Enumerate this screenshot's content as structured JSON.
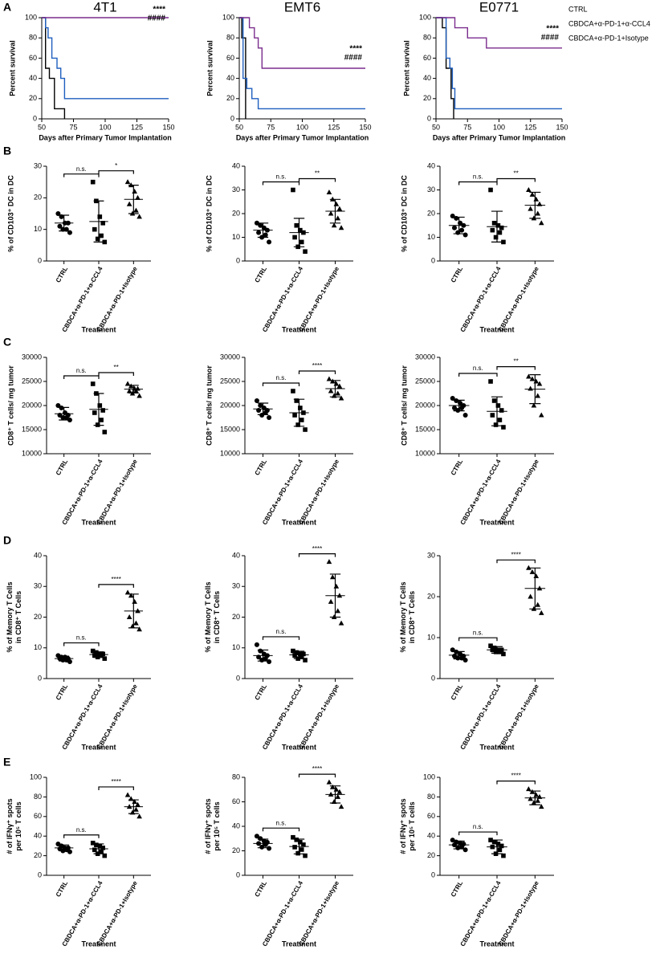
{
  "panels": [
    "A",
    "B",
    "C",
    "D",
    "E"
  ],
  "chart_data": [
    {
      "type": "line",
      "title": "4T1",
      "xlabel": "Days after Primary Tumor Implantation",
      "ylabel": [
        "Percent survival"
      ],
      "xlim": [
        50,
        150
      ],
      "xticks": [
        50,
        75,
        100,
        125,
        150
      ],
      "ylim": [
        0,
        100
      ],
      "yticks": [
        0,
        20,
        40,
        60,
        80,
        100
      ],
      "annotations": [
        "****",
        "####"
      ],
      "series": [
        {
          "color": "#000000",
          "x": [
            50,
            53,
            53,
            56,
            56,
            60,
            60,
            68,
            68
          ],
          "values": [
            100,
            100,
            50,
            50,
            40,
            40,
            10,
            10,
            0
          ]
        },
        {
          "color": "#1f5fbf",
          "x": [
            50,
            53,
            53,
            55,
            55,
            58,
            58,
            62,
            62,
            65,
            65,
            68,
            68,
            150
          ],
          "values": [
            100,
            100,
            90,
            90,
            80,
            80,
            60,
            60,
            50,
            50,
            40,
            40,
            20,
            20
          ]
        },
        {
          "color": "#7b2d8e",
          "x": [
            50,
            150
          ],
          "values": [
            100,
            100
          ]
        }
      ]
    },
    {
      "type": "line",
      "title": "EMT6",
      "xlabel": "Days after Primary Tumor Implantation",
      "ylabel": [
        "Percent survival"
      ],
      "xlim": [
        50,
        150
      ],
      "xticks": [
        50,
        75,
        100,
        125,
        150
      ],
      "ylim": [
        0,
        100
      ],
      "yticks": [
        0,
        20,
        40,
        60,
        80,
        100
      ],
      "annotations": [
        "****",
        "####"
      ],
      "series": [
        {
          "color": "#000000",
          "x": [
            50,
            52,
            52,
            55,
            55
          ],
          "values": [
            100,
            100,
            80,
            80,
            0
          ]
        },
        {
          "color": "#1f5fbf",
          "x": [
            50,
            53,
            53,
            56,
            56,
            60,
            60,
            65,
            65,
            150
          ],
          "values": [
            100,
            100,
            40,
            40,
            30,
            30,
            20,
            20,
            10,
            10
          ]
        },
        {
          "color": "#7b2d8e",
          "x": [
            50,
            58,
            58,
            62,
            62,
            65,
            65,
            68,
            68,
            150
          ],
          "values": [
            100,
            100,
            90,
            90,
            80,
            80,
            70,
            70,
            50,
            50
          ]
        }
      ]
    },
    {
      "type": "line",
      "title": "E0771",
      "xlabel": "Days after Primary Tumor Implantation",
      "ylabel": [
        "Percent survival"
      ],
      "xlim": [
        50,
        150
      ],
      "xticks": [
        50,
        75,
        100,
        125,
        150
      ],
      "ylim": [
        0,
        100
      ],
      "yticks": [
        0,
        20,
        40,
        60,
        80,
        100
      ],
      "annotations": [
        "****",
        "####"
      ],
      "legend": "right",
      "series": [
        {
          "name": "CTRL",
          "color": "#000000",
          "x": [
            50,
            55,
            55,
            58,
            58,
            62,
            62,
            64,
            64
          ],
          "values": [
            100,
            100,
            90,
            90,
            50,
            50,
            20,
            20,
            0
          ]
        },
        {
          "name": "CBDCA+α-PD-1+α-CCL4",
          "color": "#1f5fbf",
          "x": [
            50,
            58,
            58,
            61,
            61,
            63,
            63,
            65,
            65,
            150
          ],
          "values": [
            100,
            100,
            60,
            60,
            50,
            50,
            30,
            30,
            10,
            10
          ]
        },
        {
          "name": "CBDCA+α-PD-1+Isotype",
          "color": "#7b2d8e",
          "x": [
            50,
            65,
            65,
            75,
            75,
            90,
            90,
            150
          ],
          "values": [
            100,
            100,
            90,
            90,
            80,
            80,
            70,
            70
          ]
        }
      ]
    },
    {
      "type": "dot",
      "ylabel": [
        "% of CD103⁺ DC in DC"
      ],
      "xlabel": "Treatment",
      "categories": [
        "CTRL",
        "CBDCA+α-PD-1+α-CCL4",
        "CBDCA+α-PD-1+Isotype"
      ],
      "markers": [
        "circle",
        "square",
        "triangle"
      ],
      "ylim": [
        0,
        30
      ],
      "yticks": [
        0,
        10,
        20,
        30
      ],
      "values": [
        [
          15,
          14,
          12,
          12,
          11,
          10,
          10,
          9
        ],
        [
          25,
          19,
          14,
          12,
          10,
          8,
          7,
          6
        ],
        [
          25,
          24,
          22,
          20,
          18,
          16,
          15,
          14
        ]
      ],
      "means": [
        12,
        12.5,
        19.5
      ],
      "errors": [
        2.5,
        6.5,
        4.5
      ],
      "significance": [
        "n.s.",
        "*"
      ]
    },
    {
      "type": "dot",
      "ylabel": [
        "% of CD103⁺ DC in DC"
      ],
      "xlabel": "Treatment",
      "categories": [
        "CTRL",
        "CBDCA+α-PD-1+α-CCL4",
        "CBDCA+α-PD-1+Isotype"
      ],
      "markers": [
        "circle",
        "square",
        "triangle"
      ],
      "ylim": [
        0,
        40
      ],
      "yticks": [
        0,
        10,
        20,
        30,
        40
      ],
      "values": [
        [
          16,
          15,
          14,
          13,
          12,
          11,
          10,
          8
        ],
        [
          30,
          15,
          13,
          12,
          10,
          8,
          6,
          4
        ],
        [
          29,
          26,
          24,
          22,
          20,
          18,
          15,
          14
        ]
      ],
      "means": [
        13,
        12,
        21
      ],
      "errors": [
        3,
        6,
        5
      ],
      "significance": [
        "n.s.",
        "**"
      ]
    },
    {
      "type": "dot",
      "ylabel": [
        "% of CD103⁺ DC in DC"
      ],
      "xlabel": "Treatment",
      "categories": [
        "CTRL",
        "CBDCA+α-PD-1+α-CCL4",
        "CBDCA+α-PD-1+Isotype"
      ],
      "markers": [
        "circle",
        "square",
        "triangle"
      ],
      "ylim": [
        0,
        40
      ],
      "yticks": [
        0,
        10,
        20,
        30,
        40
      ],
      "values": [
        [
          19,
          18,
          16,
          15,
          14,
          13,
          12,
          11
        ],
        [
          30,
          16,
          15,
          14,
          13,
          12,
          10,
          8
        ],
        [
          30,
          28,
          26,
          24,
          22,
          20,
          18,
          16
        ]
      ],
      "means": [
        15,
        14.5,
        23.5
      ],
      "errors": [
        3.5,
        6.5,
        5.5
      ],
      "significance": [
        "n.s.",
        "**"
      ]
    },
    {
      "type": "dot",
      "ylabel": [
        "CD8⁺ T cells/ mg tumor"
      ],
      "xlabel": "Treatment",
      "categories": [
        "CTRL",
        "CBDCA+α-PD-1+α-CCL4",
        "CBDCA+α-PD-1+Isotype"
      ],
      "markers": [
        "circle",
        "square",
        "triangle"
      ],
      "ylim": [
        10000,
        30000
      ],
      "yticks": [
        10000,
        15000,
        20000,
        25000,
        30000
      ],
      "values": [
        [
          20000,
          19500,
          18500,
          18000,
          18000,
          17500,
          17500,
          17000
        ],
        [
          24500,
          22500,
          20000,
          19000,
          18500,
          17000,
          16000,
          14500
        ],
        [
          24500,
          24000,
          23500,
          23500,
          23000,
          23000,
          22500,
          22000
        ]
      ],
      "means": [
        18300,
        19200,
        23400
      ],
      "errors": [
        1300,
        3300,
        800
      ],
      "significance": [
        "n.s.",
        "**"
      ]
    },
    {
      "type": "dot",
      "ylabel": [
        "CD8⁺ T cells/ mg tumor"
      ],
      "xlabel": "Treatment",
      "categories": [
        "CTRL",
        "CBDCA+α-PD-1+α-CCL4",
        "CBDCA+α-PD-1+Isotype"
      ],
      "markers": [
        "circle",
        "square",
        "triangle"
      ],
      "ylim": [
        10000,
        30000
      ],
      "yticks": [
        10000,
        15000,
        20000,
        25000,
        30000
      ],
      "values": [
        [
          21000,
          20000,
          19500,
          19000,
          19000,
          18500,
          18000,
          17500
        ],
        [
          23000,
          21000,
          19500,
          18500,
          18000,
          17000,
          16000,
          15000
        ],
        [
          25500,
          25000,
          24500,
          24000,
          23000,
          22500,
          22000,
          21500
        ]
      ],
      "means": [
        19300,
        18500,
        23500
      ],
      "errors": [
        1200,
        2800,
        1700
      ],
      "significance": [
        "n.s.",
        "****"
      ]
    },
    {
      "type": "dot",
      "ylabel": [
        "CD8⁺ T cells/ mg tumor"
      ],
      "xlabel": "Treatment",
      "categories": [
        "CTRL",
        "CBDCA+α-PD-1+α-CCL4",
        "CBDCA+α-PD-1+Isotype"
      ],
      "markers": [
        "circle",
        "square",
        "triangle"
      ],
      "ylim": [
        10000,
        30000
      ],
      "yticks": [
        10000,
        15000,
        20000,
        25000,
        30000
      ],
      "values": [
        [
          21500,
          21000,
          20500,
          20000,
          19500,
          19500,
          19000,
          18000
        ],
        [
          25000,
          21000,
          20000,
          19000,
          18000,
          17000,
          16000,
          15500
        ],
        [
          26000,
          25500,
          25000,
          24500,
          23500,
          22000,
          20000,
          18000
        ]
      ],
      "means": [
        20000,
        18800,
        23400
      ],
      "errors": [
        1100,
        3000,
        3000
      ],
      "significance": [
        "n.s.",
        "**"
      ]
    },
    {
      "type": "dot",
      "ylabel": [
        "% of Memory T Cells",
        "in CD8⁺ T Cells"
      ],
      "xlabel": "Treatment",
      "categories": [
        "CTRL",
        "CBDCA+α-PD-1+α-CCL4",
        "CBDCA+α-PD-1+Isotype"
      ],
      "markers": [
        "circle",
        "square",
        "triangle"
      ],
      "ylim": [
        0,
        40
      ],
      "yticks": [
        0,
        10,
        20,
        30,
        40
      ],
      "values": [
        [
          7.5,
          7,
          7,
          6.5,
          6.5,
          6,
          6,
          5.5
        ],
        [
          9,
          8.5,
          8,
          8,
          7.5,
          7.5,
          7,
          6.5
        ],
        [
          28,
          27,
          25,
          22,
          20,
          18,
          17,
          16
        ]
      ],
      "means": [
        6.5,
        7.8,
        22
      ],
      "errors": [
        0.8,
        0.9,
        5.5
      ],
      "significance": [
        "n.s.",
        "****"
      ]
    },
    {
      "type": "dot",
      "ylabel": [
        "% of Memory T Cells",
        "in CD8⁺ T Cells"
      ],
      "xlabel": "Treatment",
      "categories": [
        "CTRL",
        "CBDCA+α-PD-1+α-CCL4",
        "CBDCA+α-PD-1+Isotype"
      ],
      "markers": [
        "circle",
        "square",
        "triangle"
      ],
      "ylim": [
        0,
        40
      ],
      "yticks": [
        0,
        10,
        20,
        30,
        40
      ],
      "values": [
        [
          11,
          9,
          8,
          7.5,
          7,
          6.5,
          6,
          5.5
        ],
        [
          9,
          8.5,
          8,
          8,
          7.5,
          7,
          6.5,
          6
        ],
        [
          38,
          33,
          30,
          27,
          25,
          22,
          20,
          18
        ]
      ],
      "means": [
        7.5,
        7.7,
        27
      ],
      "errors": [
        1.8,
        1.2,
        7
      ],
      "significance": [
        "n.s.",
        "****"
      ]
    },
    {
      "type": "dot",
      "ylabel": [
        "% of Memory T Cells",
        "in CD8⁺ T Cells"
      ],
      "xlabel": "Treatment",
      "categories": [
        "CTRL",
        "CBDCA+α-PD-1+α-CCL4",
        "CBDCA+α-PD-1+Isotype"
      ],
      "markers": [
        "circle",
        "square",
        "triangle"
      ],
      "ylim": [
        0,
        30
      ],
      "yticks": [
        0,
        10,
        20,
        30
      ],
      "values": [
        [
          7,
          6.5,
          6,
          5.5,
          5.5,
          5,
          5,
          4.5
        ],
        [
          8,
          7.5,
          7,
          7,
          7,
          6.5,
          6.5,
          6
        ],
        [
          27,
          26,
          25,
          22,
          20,
          18,
          17,
          16
        ]
      ],
      "means": [
        5.7,
        7,
        22
      ],
      "errors": [
        0.9,
        0.8,
        5
      ],
      "significance": [
        "n.s.",
        "****"
      ]
    },
    {
      "type": "dot",
      "ylabel": [
        "# of IFNγ⁺ spots",
        "per 10⁵ T cells"
      ],
      "xlabel": "Treatment",
      "categories": [
        "CTRL",
        "CBDCA+α-PD-1+α-CCL4",
        "CBDCA+α-PD-1+Isotype"
      ],
      "markers": [
        "circle",
        "square",
        "triangle"
      ],
      "ylim": [
        0,
        100
      ],
      "yticks": [
        0,
        20,
        40,
        60,
        80,
        100
      ],
      "values": [
        [
          32,
          30,
          28,
          28,
          27,
          26,
          25,
          24
        ],
        [
          33,
          31,
          30,
          28,
          26,
          24,
          22,
          20
        ],
        [
          82,
          78,
          75,
          72,
          70,
          67,
          64,
          60
        ]
      ],
      "means": [
        28,
        27,
        70
      ],
      "errors": [
        3,
        5,
        7
      ],
      "significance": [
        "n.s.",
        "****"
      ]
    },
    {
      "type": "dot",
      "ylabel": [
        "# of IFNγ⁺ spots",
        "per 10⁵ T cells"
      ],
      "xlabel": "Treatment",
      "categories": [
        "CTRL",
        "CBDCA+α-PD-1+α-CCL4",
        "CBDCA+α-PD-1+Isotype"
      ],
      "markers": [
        "circle",
        "square",
        "triangle"
      ],
      "ylim": [
        0,
        80
      ],
      "yticks": [
        0,
        20,
        40,
        60,
        80
      ],
      "values": [
        [
          32,
          30,
          28,
          27,
          26,
          25,
          23,
          22
        ],
        [
          31,
          29,
          27,
          25,
          23,
          21,
          18,
          16
        ],
        [
          76,
          72,
          70,
          68,
          66,
          64,
          60,
          56
        ]
      ],
      "means": [
        26,
        23.5,
        66
      ],
      "errors": [
        3.5,
        6,
        7
      ],
      "significance": [
        "n.s.",
        "****"
      ]
    },
    {
      "type": "dot",
      "ylabel": [
        "# of IFNγ⁺ spots",
        "per 10⁵ T cells"
      ],
      "xlabel": "Treatment",
      "categories": [
        "CTRL",
        "CBDCA+α-PD-1+α-CCL4",
        "CBDCA+α-PD-1+Isotype"
      ],
      "markers": [
        "circle",
        "square",
        "triangle"
      ],
      "ylim": [
        0,
        100
      ],
      "yticks": [
        0,
        20,
        40,
        60,
        80,
        100
      ],
      "values": [
        [
          36,
          34,
          33,
          32,
          31,
          29,
          28,
          26
        ],
        [
          36,
          34,
          32,
          30,
          29,
          26,
          22,
          20
        ],
        [
          88,
          85,
          82,
          80,
          78,
          76,
          74,
          70
        ]
      ],
      "means": [
        31,
        29,
        79
      ],
      "errors": [
        4,
        7,
        7
      ],
      "significance": [
        "n.s.",
        "****"
      ]
    }
  ]
}
